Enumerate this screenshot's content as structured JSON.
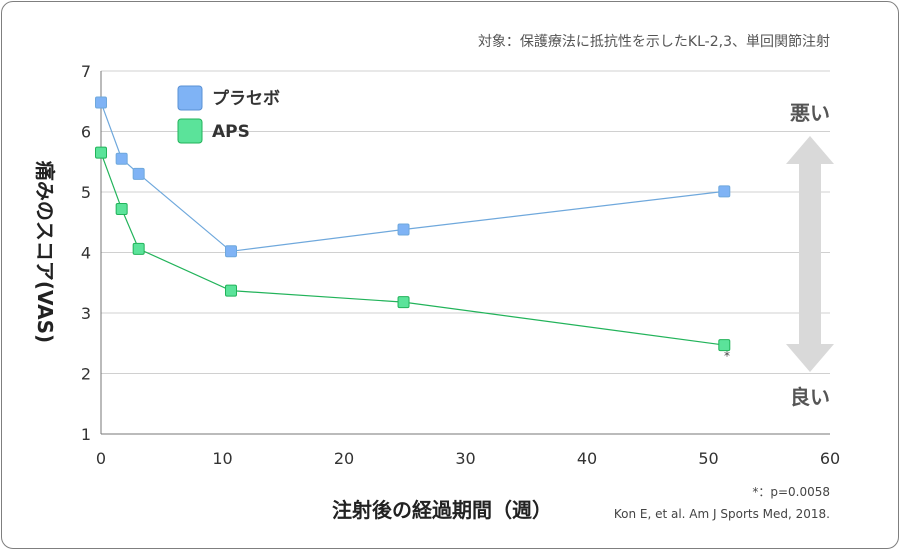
{
  "chart_data": {
    "type": "line",
    "subtitle": "対象：保護療法に抵抗性を示したKL-2,3、単回関節注射",
    "xlabel": "注射後の経過期間（週）",
    "ylabel": "痛みのスコア(VAS)",
    "xlim": [
      0,
      60
    ],
    "ylim": [
      1,
      7
    ],
    "xticks": [
      "0",
      "10",
      "20",
      "30",
      "40",
      "50",
      "60"
    ],
    "yticks": [
      "1",
      "2",
      "3",
      "4",
      "5",
      "6",
      "7"
    ],
    "grid": true,
    "legend_position": "top-left",
    "series": [
      {
        "name": "プラセボ",
        "color": "#7fb3f5",
        "line_color": "#6fa8dc",
        "x": [
          0,
          1.7,
          3.1,
          10.7,
          24.9,
          51.3
        ],
        "y": [
          6.48,
          5.55,
          5.3,
          4.02,
          4.38,
          5.01
        ]
      },
      {
        "name": "APS",
        "color": "#5be39a",
        "line_color": "#22b35a",
        "x": [
          0,
          1.7,
          3.1,
          10.7,
          24.9,
          51.3
        ],
        "y": [
          5.65,
          4.72,
          4.06,
          3.37,
          3.18,
          2.47
        ]
      }
    ],
    "annotations": {
      "worse": "悪い",
      "better": "良い",
      "asterisk": "*",
      "pvalue_note": "*：p=0.0058",
      "citation": "Kon E,  et al.   Am J Sports Med, 2018."
    }
  }
}
